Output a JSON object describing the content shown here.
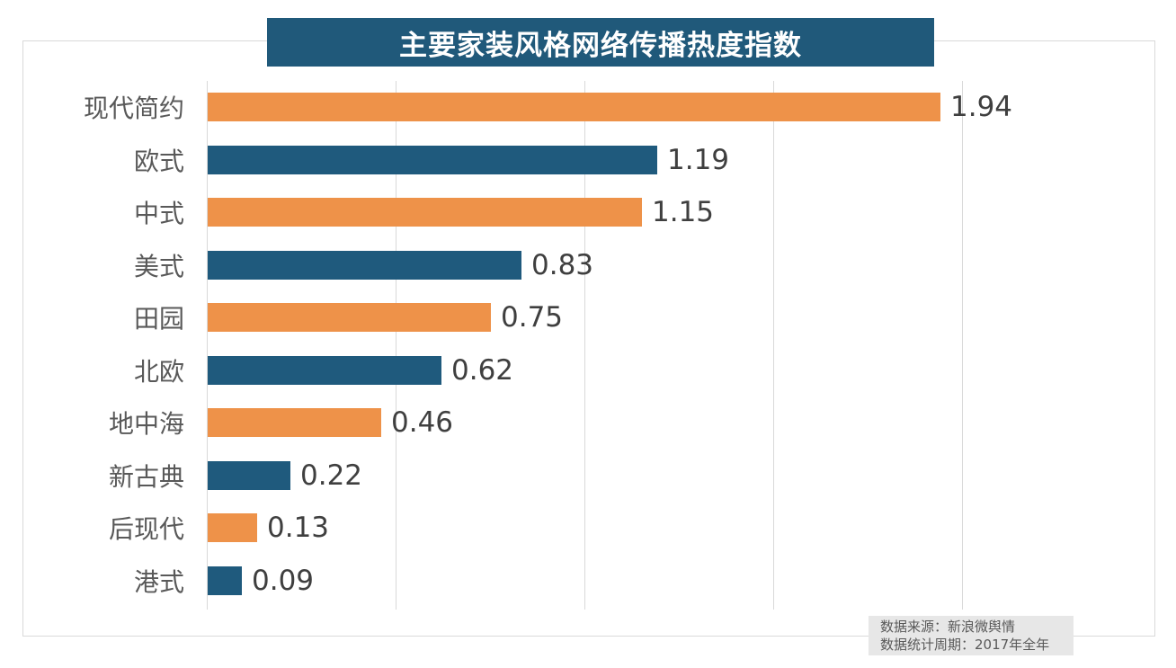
{
  "chart_data": {
    "type": "bar",
    "orientation": "horizontal",
    "title": "主要家装风格网络传播热度指数",
    "categories": [
      "现代简约",
      "欧式",
      "中式",
      "美式",
      "田园",
      "北欧",
      "地中海",
      "新古典",
      "后现代",
      "港式"
    ],
    "values": [
      1.94,
      1.19,
      1.15,
      0.83,
      0.75,
      0.62,
      0.46,
      0.22,
      0.13,
      0.09
    ],
    "value_labels": [
      "1.94",
      "1.19",
      "1.15",
      "0.83",
      "0.75",
      "0.62",
      "0.46",
      "0.22",
      "0.13",
      "0.09"
    ],
    "xlabel": "",
    "ylabel": "",
    "xlim": [
      0,
      2.5
    ],
    "gridline_step": 0.5,
    "grid": true,
    "legend_position": "none",
    "bar_color_even_rows": "#EE9249",
    "bar_color_odd_rows": "#1F5A7D"
  },
  "source_note": {
    "line1": "数据来源：新浪微舆情",
    "line2": "数据统计周期：2017年全年"
  },
  "colors": {
    "title_bg": "#20597A",
    "title_text": "#FFFFFF",
    "bar_orange": "#EE9249",
    "bar_teal": "#1F5A7D",
    "gridline": "#D9D9D9",
    "frame_border": "#D9D9D9",
    "category_text": "#595959",
    "value_text": "#3F3F3F",
    "source_bg": "#E7E7E7",
    "source_text": "#595959"
  }
}
